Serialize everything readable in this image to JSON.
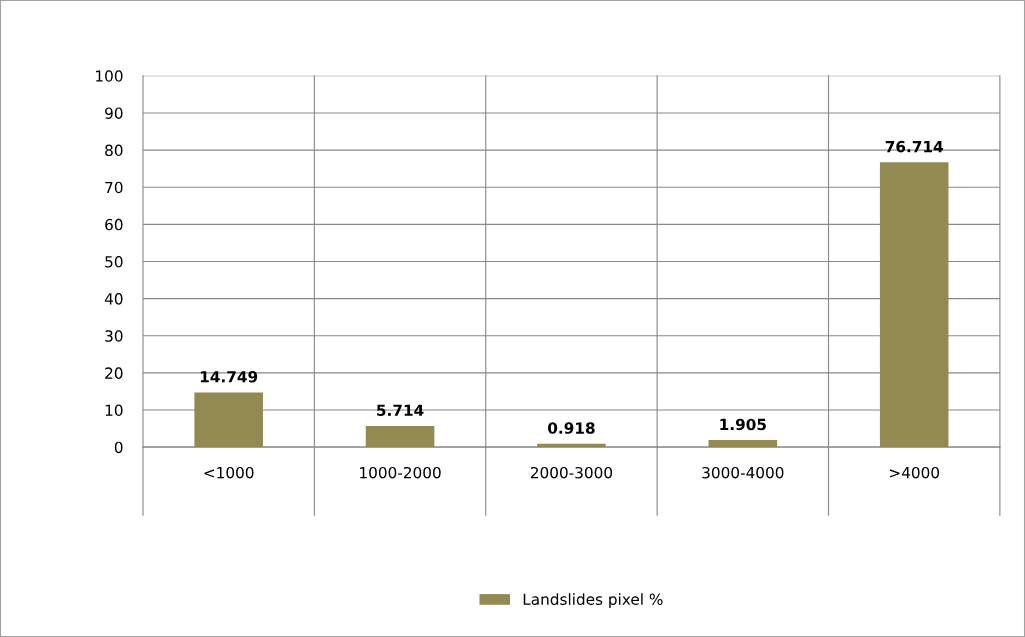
{
  "chart_data": {
    "type": "bar",
    "categories": [
      "<1000",
      "1000-2000",
      "2000-3000",
      "3000-4000",
      ">4000"
    ],
    "series": [
      {
        "name": "Landslides pixel %",
        "color": "#938953",
        "values": [
          14.749,
          5.714,
          0.918,
          1.905,
          76.714
        ]
      }
    ],
    "ylim": [
      0,
      100
    ],
    "yticks": [
      0,
      10,
      20,
      30,
      40,
      50,
      60,
      70,
      80,
      90,
      100
    ],
    "grid": true,
    "data_labels": true,
    "legend": "bottom"
  }
}
